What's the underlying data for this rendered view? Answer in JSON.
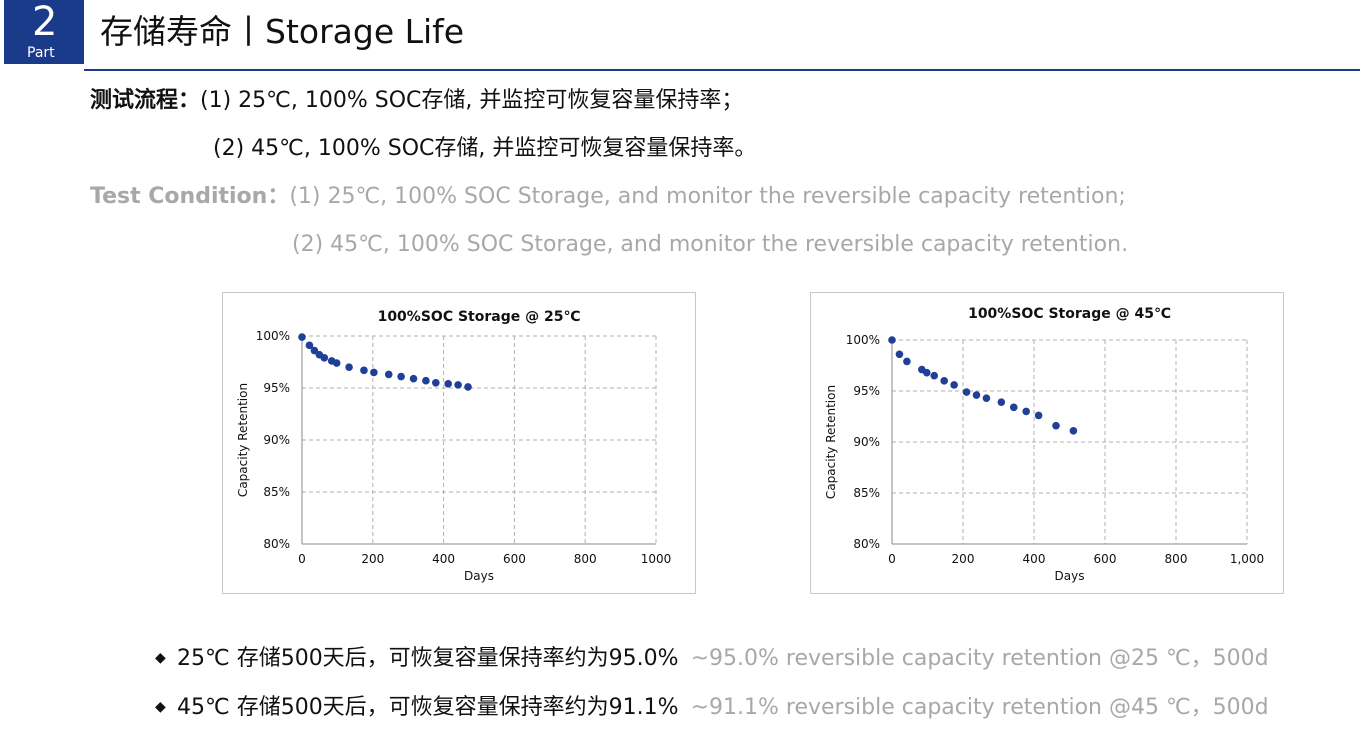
{
  "header": {
    "badge_number": "2",
    "badge_label": "Part",
    "title": "存储寿命丨Storage Life"
  },
  "procedure": {
    "zh_label": "测试流程：",
    "zh_step1": "(1) 25℃, 100% SOC存储, 并监控可恢复容量保持率；",
    "zh_step2": "(2) 45℃, 100% SOC存储, 并监控可恢复容量保持率。",
    "en_label": "Test Condition：",
    "en_step1": "(1) 25℃, 100% SOC Storage, and monitor the reversible capacity retention;",
    "en_step2": "(2) 45℃, 100% SOC Storage, and monitor the reversible capacity retention."
  },
  "chart_data": [
    {
      "type": "scatter",
      "title": "100%SOC Storage @ 25℃",
      "xlabel": "Days",
      "ylabel": "Capacity Retention",
      "xlim": [
        0,
        1000
      ],
      "ylim": [
        80,
        100
      ],
      "xticks": [
        0,
        200,
        400,
        600,
        800,
        1000
      ],
      "xtick_labels": [
        "0",
        "200",
        "400",
        "600",
        "800",
        "1000"
      ],
      "yticks": [
        80,
        85,
        90,
        95,
        100
      ],
      "ytick_labels": [
        "80%",
        "85%",
        "90%",
        "95%",
        "100%"
      ],
      "grid": true,
      "color": "#1f3f99",
      "x": [
        0,
        21,
        35,
        49,
        63,
        84,
        98,
        133,
        175,
        203,
        245,
        280,
        315,
        350,
        378,
        413,
        441,
        469
      ],
      "y": [
        99.9,
        99.1,
        98.6,
        98.2,
        97.9,
        97.6,
        97.4,
        97.0,
        96.7,
        96.5,
        96.3,
        96.1,
        95.9,
        95.7,
        95.5,
        95.4,
        95.3,
        95.1
      ]
    },
    {
      "type": "scatter",
      "title": "100%SOC Storage @ 45℃",
      "xlabel": "Days",
      "ylabel": "Capacity Retention",
      "xlim": [
        0,
        1000
      ],
      "ylim": [
        80,
        100
      ],
      "xticks": [
        0,
        200,
        400,
        600,
        800,
        1000
      ],
      "xtick_labels": [
        "0",
        "200",
        "400",
        "600",
        "800",
        "1,000"
      ],
      "yticks": [
        80,
        85,
        90,
        95,
        100
      ],
      "ytick_labels": [
        "80%",
        "85%",
        "90%",
        "95%",
        "100%"
      ],
      "grid": true,
      "color": "#1f3f99",
      "x": [
        0,
        21,
        42,
        84,
        98,
        119,
        147,
        175,
        210,
        238,
        266,
        308,
        343,
        378,
        413,
        462,
        511
      ],
      "y": [
        100.0,
        98.6,
        97.9,
        97.1,
        96.8,
        96.5,
        96.0,
        95.6,
        94.9,
        94.6,
        94.3,
        93.9,
        93.4,
        93.0,
        92.6,
        91.6,
        91.1
      ]
    }
  ],
  "conclusions": [
    {
      "zh": "25℃ 存储500天后，可恢复容量保持率约为95.0%",
      "en": "~95.0% reversible capacity retention @25 ℃，500d"
    },
    {
      "zh": "45℃ 存储500天后，可恢复容量保持率约为91.1%",
      "en": "~91.1% reversible capacity retention @45 ℃，500d"
    }
  ],
  "bullet_symbol": "◆"
}
